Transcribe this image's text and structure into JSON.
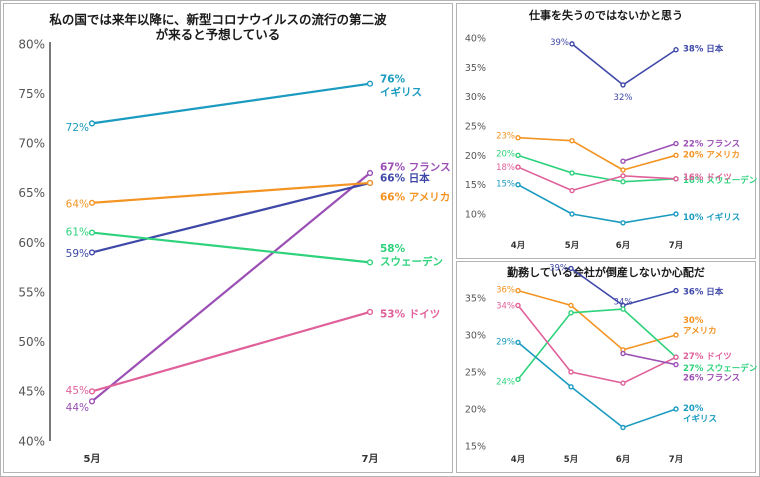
{
  "colors": {
    "UK": "#1a9bbf",
    "Japan": "#3f48a8",
    "France": "#9b4fb4",
    "USA": "#f39322",
    "Sweden": "#2fd27c",
    "Germany": "#e0609a"
  },
  "chart_data": [
    {
      "type": "line",
      "title": "私の国では来年以降に、新型コロナウイルスの流行の第二波\nが来ると予想している",
      "categories": [
        "5月",
        "7月"
      ],
      "yticks": [
        "40%",
        "45%",
        "50%",
        "55%",
        "60%",
        "65%",
        "70%",
        "75%",
        "80%"
      ],
      "ylim": [
        40,
        80
      ],
      "series": [
        {
          "key": "UK",
          "name": "イギリス",
          "values": [
            72,
            76
          ],
          "labels": [
            "72%",
            "76%\nイギリス"
          ]
        },
        {
          "key": "France",
          "name": "フランス",
          "values": [
            44,
            67
          ],
          "labels": [
            "44%",
            "67% フランス"
          ]
        },
        {
          "key": "Japan",
          "name": "日本",
          "values": [
            59,
            66
          ],
          "labels": [
            "59%",
            "66% 日本"
          ]
        },
        {
          "key": "USA",
          "name": "アメリカ",
          "values": [
            64,
            66
          ],
          "labels": [
            "64%",
            "66% アメリカ"
          ]
        },
        {
          "key": "Sweden",
          "name": "スウェーデン",
          "values": [
            61,
            58
          ],
          "labels": [
            "61%",
            "58%\nスウェーデン"
          ]
        },
        {
          "key": "Germany",
          "name": "ドイツ",
          "values": [
            45,
            53
          ],
          "labels": [
            "45%",
            "53% ドイツ"
          ]
        }
      ]
    },
    {
      "type": "line",
      "title": "仕事を失うのではないかと思う",
      "categories": [
        "4月",
        "5月",
        "6月",
        "7月"
      ],
      "yticks": [
        "10%",
        "15%",
        "20%",
        "25%",
        "30%",
        "35%",
        "40%"
      ],
      "ylim": [
        10,
        40
      ],
      "series": [
        {
          "key": "Japan",
          "name": "日本",
          "values": [
            null,
            39,
            32,
            38
          ],
          "labels": [
            "",
            "39%",
            "32%",
            "38% 日本"
          ]
        },
        {
          "key": "USA",
          "name": "アメリカ",
          "values": [
            23,
            22.5,
            17.5,
            20
          ],
          "labels": [
            "23%",
            "",
            "",
            "20% アメリカ"
          ]
        },
        {
          "key": "France",
          "name": "フランス",
          "values": [
            null,
            null,
            19,
            22
          ],
          "labels": [
            "",
            "",
            "",
            "22% フランス"
          ]
        },
        {
          "key": "Sweden",
          "name": "スウェーデン",
          "values": [
            20,
            17,
            15.5,
            16
          ],
          "labels": [
            "20%",
            "",
            "",
            "16% スウェーデン"
          ]
        },
        {
          "key": "Germany",
          "name": "ドイツ",
          "values": [
            18,
            14,
            16.5,
            16
          ],
          "labels": [
            "18%",
            "",
            "",
            "16% ドイツ"
          ]
        },
        {
          "key": "UK",
          "name": "イギリス",
          "values": [
            15,
            10,
            8.5,
            10
          ],
          "labels": [
            "15%",
            "",
            "",
            "10% イギリス"
          ]
        }
      ]
    },
    {
      "type": "line",
      "title": "勤務している会社が倒産しないか心配だ",
      "categories": [
        "4月",
        "5月",
        "6月",
        "7月"
      ],
      "yticks": [
        "15%",
        "20%",
        "25%",
        "30%",
        "35%"
      ],
      "ylim": [
        15,
        35
      ],
      "series": [
        {
          "key": "Japan",
          "name": "日本",
          "values": [
            null,
            39,
            34,
            36
          ],
          "labels": [
            "",
            "39%",
            "34%",
            "36% 日本"
          ]
        },
        {
          "key": "USA",
          "name": "アメリカ",
          "values": [
            36,
            34,
            28,
            30
          ],
          "labels": [
            "36%",
            "",
            "",
            "30%\nアメリカ"
          ]
        },
        {
          "key": "Sweden",
          "name": "スウェーデン",
          "values": [
            24,
            33,
            33.5,
            27
          ],
          "labels": [
            "24%",
            "",
            "",
            "27% スウェーデン"
          ]
        },
        {
          "key": "Germany",
          "name": "ドイツ",
          "values": [
            34,
            25,
            23.5,
            27
          ],
          "labels": [
            "34%",
            "",
            "",
            "27% ドイツ"
          ]
        },
        {
          "key": "France",
          "name": "フランス",
          "values": [
            null,
            null,
            27.5,
            26
          ],
          "labels": [
            "",
            "",
            "",
            "26% フランス"
          ]
        },
        {
          "key": "UK",
          "name": "イギリス",
          "values": [
            29,
            23,
            17.5,
            20
          ],
          "labels": [
            "29%",
            "",
            "",
            "20%\nイギリス"
          ]
        }
      ]
    }
  ]
}
